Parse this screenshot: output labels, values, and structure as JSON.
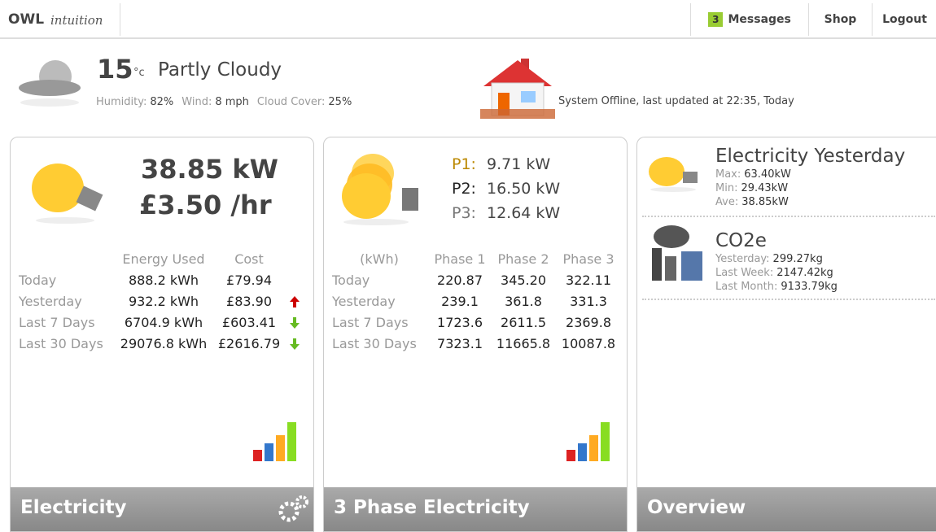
{
  "header": {
    "logo_brand": "OWL",
    "logo_product": "intuition",
    "nav": {
      "messages_count": "3",
      "messages": "Messages",
      "shop": "Shop",
      "logout": "Logout"
    }
  },
  "weather": {
    "temperature": "15",
    "unit": "°c",
    "condition": "Partly Cloudy",
    "details": [
      {
        "label": "Humidity:",
        "value": "82%"
      },
      {
        "label": "Wind:",
        "value": "8 mph"
      },
      {
        "label": "Cloud Cover:",
        "value": "25%"
      }
    ]
  },
  "status": "System Offline, last updated at 22:35, Today",
  "electricity": {
    "power": "38.85 kW",
    "cost_rate": "£3.50 /hr",
    "columns": [
      "Energy Used",
      "Cost"
    ],
    "rows": [
      [
        "Today",
        "888.2 kWh",
        "£79.94"
      ],
      [
        "Yesterday",
        "932.2 kWh",
        "£83.90"
      ],
      [
        "Last 7 Days",
        "6704.9 kWh",
        "£603.41"
      ],
      [
        "Last 30 Days",
        "29076.8 kWh",
        "£2616.79"
      ]
    ],
    "footer": "Electricity"
  },
  "three_phase": {
    "phases": [
      {
        "label": "P1:",
        "value": "9.71 kW"
      },
      {
        "label": "P2:",
        "value": "16.50 kW"
      },
      {
        "label": "P3:",
        "value": "12.64 kW"
      }
    ],
    "columns": [
      "(kWh)",
      "Phase 1",
      "Phase 2",
      "Phase 3"
    ],
    "rows": [
      [
        "Today",
        "220.87",
        "345.20",
        "322.11"
      ],
      [
        "Yesterday",
        "239.1",
        "361.8",
        "331.3"
      ],
      [
        "Last 7 Days",
        "1723.6",
        "2611.5",
        "2369.8"
      ],
      [
        "Last 30 Days",
        "7323.1",
        "11665.8",
        "10087.8"
      ]
    ],
    "footer": "3 Phase Electricity"
  },
  "overview": {
    "electricity_yesterday": {
      "title": "Electricity Yesterday",
      "items": [
        {
          "label": "Max:",
          "value": "63.40kW"
        },
        {
          "label": "Min:",
          "value": "29.43kW"
        },
        {
          "label": "Ave:",
          "value": "38.85kW"
        }
      ]
    },
    "co2": {
      "title": "CO2e",
      "items": [
        {
          "label": "Yesterday:",
          "value": "299.27kg"
        },
        {
          "label": "Last Week:",
          "value": "2147.42kg"
        },
        {
          "label": "Last Month:",
          "value": "9133.79kg"
        }
      ]
    },
    "footer": "Overview"
  }
}
